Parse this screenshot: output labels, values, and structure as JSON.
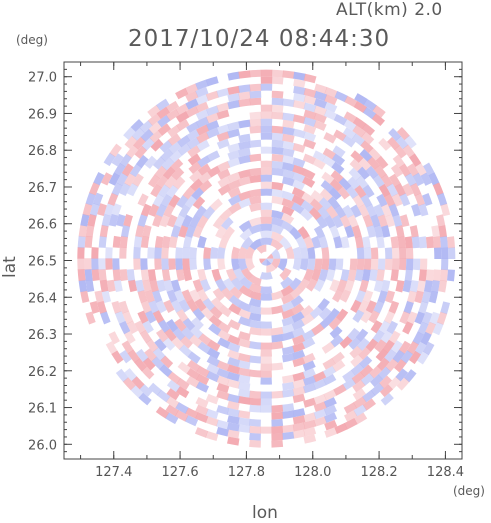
{
  "header": {
    "altitude_label": "ALT(km) 2.0",
    "timestamp": "2017/10/24 08:44:30"
  },
  "chart_data": {
    "type": "heatmap",
    "xlabel": "lon",
    "ylabel": "lat",
    "x_unit": "(deg)",
    "y_unit": "(deg)",
    "xlim": [
      127.25,
      128.45
    ],
    "ylim": [
      25.96,
      27.04
    ],
    "x_ticks": [
      127.4,
      127.6,
      127.8,
      128.0,
      128.2,
      128.4
    ],
    "y_ticks": [
      26.0,
      26.1,
      26.2,
      26.3,
      26.4,
      26.5,
      26.6,
      26.7,
      26.8,
      26.9,
      27.0
    ],
    "center": {
      "lon": 127.86,
      "lat": 26.505
    },
    "radius_lat_deg": 0.53,
    "colors": {
      "positive": "#f2a0a8",
      "negative": "#a8b0f2",
      "zero": "#ffffff"
    },
    "grid": false,
    "legend": "none"
  }
}
